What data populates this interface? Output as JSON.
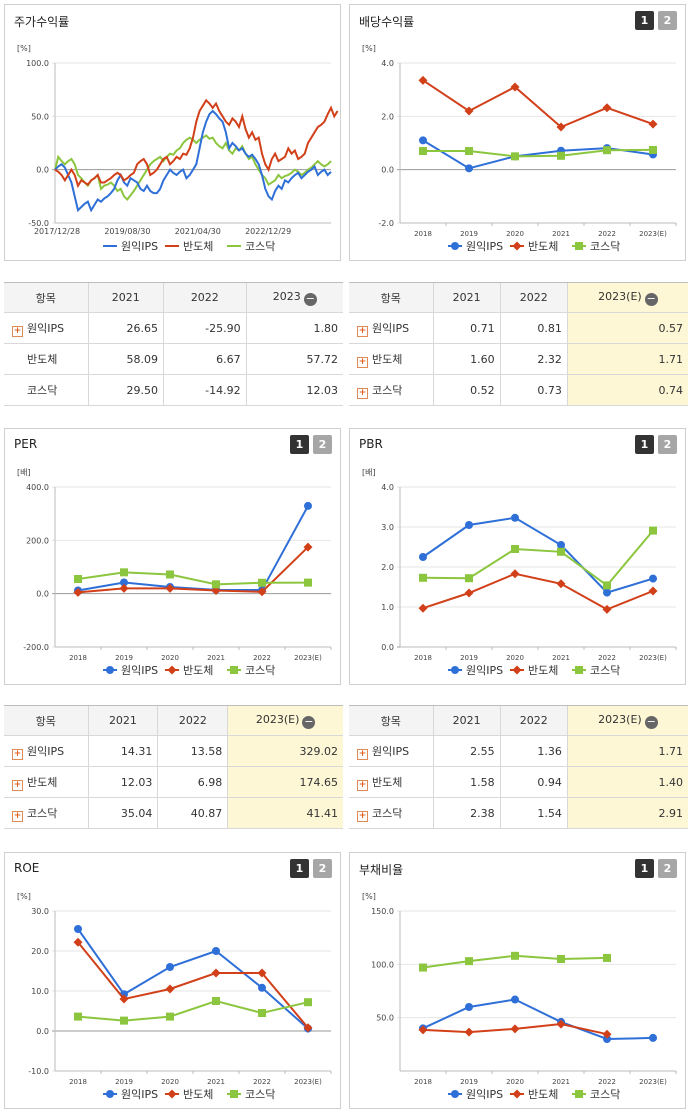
{
  "colors": {
    "company": "#2f6fd8",
    "semi": "#d2401a",
    "kosdaq": "#8cc63f"
  },
  "legend": [
    "원익IPS",
    "반도체",
    "코스닥"
  ],
  "chart_data": [
    {
      "id": "stock",
      "type": "line",
      "title": "주가수익률",
      "unit": "[%]",
      "ylim": [
        -50,
        100
      ],
      "yticks": [
        "100.0",
        "50.0",
        "0.0",
        "-50.0"
      ],
      "xlabels": [
        "2017/12/28",
        "2019/08/30",
        "2021/04/30",
        "2022/12/29"
      ],
      "series": [
        {
          "name": "원익IPS",
          "values": [
            0,
            3,
            5,
            2,
            -5,
            -12,
            -25,
            -38,
            -35,
            -32,
            -30,
            -38,
            -33,
            -28,
            -30,
            -27,
            -25,
            -22,
            -18,
            -10,
            -5,
            -12,
            -15,
            -8,
            -10,
            -12,
            -18,
            -20,
            -15,
            -20,
            -22,
            -22,
            -18,
            -10,
            -5,
            0,
            -3,
            -5,
            -2,
            0,
            -8,
            -5,
            0,
            5,
            20,
            35,
            45,
            52,
            55,
            52,
            48,
            45,
            35,
            20,
            25,
            22,
            18,
            20,
            15,
            12,
            14,
            10,
            5,
            -5,
            -18,
            -25,
            -28,
            -20,
            -15,
            -18,
            -10,
            -12,
            -8,
            -5,
            -3,
            -8,
            -5,
            -2,
            0,
            3,
            -5,
            -2,
            0,
            -5,
            -2
          ]
        },
        {
          "name": "반도체",
          "values": [
            0,
            -2,
            -5,
            -10,
            -5,
            0,
            -5,
            -15,
            -10,
            -12,
            -14,
            -10,
            -8,
            -5,
            -12,
            -12,
            -10,
            -8,
            -5,
            -3,
            -5,
            -10,
            -8,
            -5,
            -3,
            5,
            8,
            10,
            5,
            -5,
            -3,
            0,
            5,
            10,
            12,
            5,
            8,
            12,
            10,
            15,
            14,
            20,
            30,
            45,
            55,
            60,
            65,
            62,
            58,
            62,
            55,
            50,
            45,
            42,
            48,
            45,
            40,
            50,
            38,
            30,
            35,
            28,
            30,
            15,
            5,
            0,
            10,
            15,
            8,
            10,
            12,
            20,
            15,
            18,
            10,
            12,
            15,
            25,
            30,
            35,
            40,
            42,
            45,
            52,
            58,
            50,
            55
          ]
        },
        {
          "name": "코스닥",
          "values": [
            0,
            12,
            8,
            5,
            8,
            10,
            5,
            -5,
            -8,
            -12,
            -15,
            -10,
            -8,
            -5,
            -18,
            -15,
            -14,
            -12,
            -15,
            -20,
            -18,
            -25,
            -28,
            -24,
            -20,
            -15,
            -10,
            -5,
            0,
            5,
            8,
            10,
            12,
            8,
            12,
            15,
            14,
            18,
            20,
            25,
            28,
            30,
            28,
            25,
            28,
            30,
            32,
            29,
            30,
            25,
            22,
            20,
            25,
            18,
            15,
            20,
            18,
            22,
            15,
            10,
            12,
            5,
            0,
            -5,
            -8,
            -14,
            -12,
            -10,
            -5,
            -8,
            -6,
            -5,
            -3,
            0,
            -2,
            -5,
            -3,
            0,
            2,
            5,
            8,
            5,
            3,
            5,
            8
          ]
        }
      ]
    },
    {
      "id": "dividend",
      "type": "line",
      "title": "배당수익률",
      "unit": "[%]",
      "ylim": [
        -2,
        4
      ],
      "yticks": [
        "4.0",
        "2.0",
        "0.0",
        "-2.0"
      ],
      "categories": [
        "2018",
        "2019",
        "2020",
        "2021",
        "2022",
        "2023(E)"
      ],
      "series": [
        {
          "name": "원익IPS",
          "values": [
            1.1,
            0.05,
            0.5,
            0.71,
            0.81,
            0.57
          ]
        },
        {
          "name": "반도체",
          "values": [
            3.35,
            2.2,
            3.1,
            1.6,
            2.32,
            1.71
          ]
        },
        {
          "name": "코스닥",
          "values": [
            0.7,
            0.7,
            0.5,
            0.52,
            0.73,
            0.74
          ]
        }
      ]
    },
    {
      "id": "per",
      "type": "line",
      "title": "PER",
      "unit": "[배]",
      "ylim": [
        -200,
        400
      ],
      "yticks": [
        "400.0",
        "200.0",
        "0.0",
        "-200.0"
      ],
      "categories": [
        "2018",
        "2019",
        "2020",
        "2021",
        "2022",
        "2023(E)"
      ],
      "series": [
        {
          "name": "원익IPS",
          "values": [
            12,
            42,
            25,
            14.31,
            13.58,
            329.02
          ]
        },
        {
          "name": "반도체",
          "values": [
            5,
            20,
            20,
            12.03,
            6.98,
            174.65
          ]
        },
        {
          "name": "코스닥",
          "values": [
            55,
            80,
            72,
            35.04,
            40.87,
            41.41
          ]
        }
      ]
    },
    {
      "id": "pbr",
      "type": "line",
      "title": "PBR",
      "unit": "[배]",
      "ylim": [
        0,
        4
      ],
      "yticks": [
        "4.0",
        "3.0",
        "2.0",
        "1.0",
        "0.0"
      ],
      "categories": [
        "2018",
        "2019",
        "2020",
        "2021",
        "2022",
        "2023(E)"
      ],
      "series": [
        {
          "name": "원익IPS",
          "values": [
            2.25,
            3.05,
            3.23,
            2.55,
            1.36,
            1.71
          ]
        },
        {
          "name": "반도체",
          "values": [
            0.97,
            1.35,
            1.83,
            1.58,
            0.94,
            1.4
          ]
        },
        {
          "name": "코스닥",
          "values": [
            1.73,
            1.72,
            2.45,
            2.38,
            1.54,
            2.91
          ]
        }
      ]
    },
    {
      "id": "roe",
      "type": "line",
      "title": "ROE",
      "unit": "[%]",
      "ylim": [
        -10,
        30
      ],
      "yticks": [
        "30.0",
        "20.0",
        "10.0",
        "0.0",
        "-10.0"
      ],
      "categories": [
        "2018",
        "2019",
        "2020",
        "2021",
        "2022",
        "2023(E)"
      ],
      "series": [
        {
          "name": "원익IPS",
          "values": [
            25.5,
            9.2,
            16,
            20,
            10.8,
            0.6
          ]
        },
        {
          "name": "반도체",
          "values": [
            22.2,
            8,
            10.5,
            14.5,
            14.5,
            0.8
          ]
        },
        {
          "name": "코스닥",
          "values": [
            3.6,
            2.6,
            3.6,
            7.5,
            4.5,
            7.2
          ]
        }
      ]
    },
    {
      "id": "debt",
      "type": "line",
      "title": "부채비율",
      "unit": "[%]",
      "ylim": [
        0,
        150
      ],
      "yticks": [
        "150.0",
        "100.0",
        "50.0"
      ],
      "categories": [
        "2018",
        "2019",
        "2020",
        "2021",
        "2022",
        "2023(E)"
      ],
      "series": [
        {
          "name": "원익IPS",
          "values": [
            40,
            60,
            67,
            46,
            30,
            31
          ]
        },
        {
          "name": "반도체",
          "values": [
            38.5,
            36.5,
            39.5,
            44,
            34.5,
            null
          ]
        },
        {
          "name": "코스닥",
          "values": [
            97,
            103,
            108,
            105,
            106,
            null
          ]
        }
      ]
    }
  ],
  "tables": {
    "stock": {
      "headers": [
        "항목",
        "2021",
        "2022",
        "2023"
      ],
      "header_action": "−",
      "rows": [
        {
          "name": "원익IPS",
          "plus": true,
          "values": [
            "26.65",
            "-25.90",
            "1.80"
          ]
        },
        {
          "name": "반도체",
          "plus": false,
          "values": [
            "58.09",
            "6.67",
            "57.72"
          ]
        },
        {
          "name": "코스닥",
          "plus": false,
          "values": [
            "29.50",
            "-14.92",
            "12.03"
          ]
        }
      ]
    },
    "dividend": {
      "headers": [
        "항목",
        "2021",
        "2022",
        "2023(E)"
      ],
      "header_action": "−",
      "rows": [
        {
          "name": "원익IPS",
          "plus": true,
          "values": [
            "0.71",
            "0.81",
            "0.57"
          ]
        },
        {
          "name": "반도체",
          "plus": true,
          "values": [
            "1.60",
            "2.32",
            "1.71"
          ]
        },
        {
          "name": "코스닥",
          "plus": true,
          "values": [
            "0.52",
            "0.73",
            "0.74"
          ]
        }
      ]
    },
    "per": {
      "headers": [
        "항목",
        "2021",
        "2022",
        "2023(E)"
      ],
      "header_action": "−",
      "rows": [
        {
          "name": "원익IPS",
          "plus": true,
          "values": [
            "14.31",
            "13.58",
            "329.02"
          ]
        },
        {
          "name": "반도체",
          "plus": true,
          "values": [
            "12.03",
            "6.98",
            "174.65"
          ]
        },
        {
          "name": "코스닥",
          "plus": true,
          "values": [
            "35.04",
            "40.87",
            "41.41"
          ]
        }
      ]
    },
    "pbr": {
      "headers": [
        "항목",
        "2021",
        "2022",
        "2023(E)"
      ],
      "header_action": "−",
      "rows": [
        {
          "name": "원익IPS",
          "plus": true,
          "values": [
            "2.55",
            "1.36",
            "1.71"
          ]
        },
        {
          "name": "반도체",
          "plus": true,
          "values": [
            "1.58",
            "0.94",
            "1.40"
          ]
        },
        {
          "name": "코스닥",
          "plus": true,
          "values": [
            "2.38",
            "1.54",
            "2.91"
          ]
        }
      ]
    }
  },
  "toggle": {
    "first": "1",
    "second": "2"
  }
}
